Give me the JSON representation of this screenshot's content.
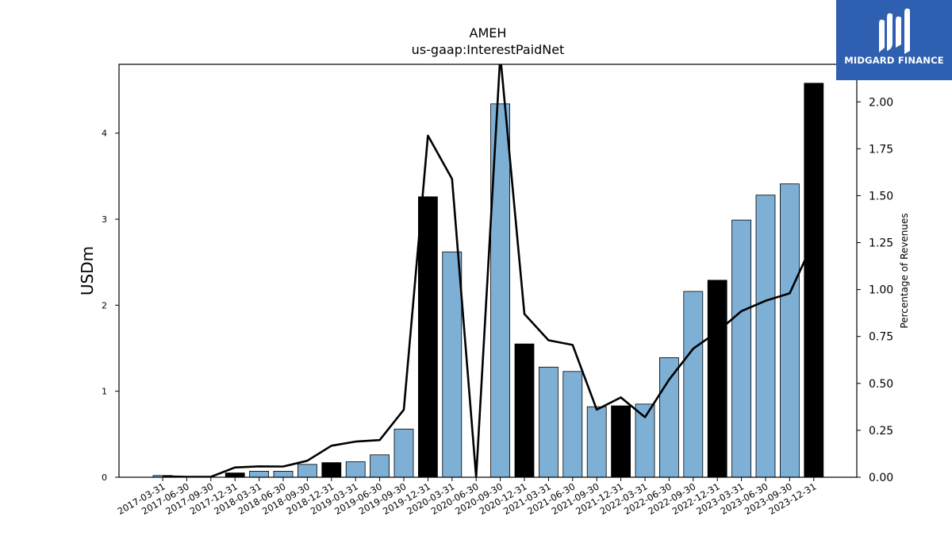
{
  "brand": {
    "name": "MIDGARD FINANCE",
    "logo_icon": "midgard-logo-icon",
    "background": "#2f5fb0"
  },
  "chart_data": {
    "type": "bar",
    "title": "AMEH",
    "subtitle": "us-gaap:InterestPaidNet",
    "ylabel": "USDm",
    "y2label": "Percentage of Revenues",
    "ylim": [
      0,
      4.8
    ],
    "y2lim": [
      0,
      2.2
    ],
    "yticks": [
      "0",
      "1",
      "2",
      "3",
      "4"
    ],
    "y2ticks": [
      "0.00",
      "0.25",
      "0.50",
      "0.75",
      "1.00",
      "1.25",
      "1.50",
      "1.75",
      "2.00"
    ],
    "grid": false,
    "categories": [
      "2017-03-31",
      "2017-06-30",
      "2017-09-30",
      "2017-12-31",
      "2018-03-31",
      "2018-06-30",
      "2018-09-30",
      "2018-12-31",
      "2019-03-31",
      "2019-06-30",
      "2019-09-30",
      "2019-12-31",
      "2020-03-31",
      "2020-06-30",
      "2020-09-30",
      "2020-12-31",
      "2021-03-31",
      "2021-06-30",
      "2021-09-30",
      "2021-12-31",
      "2022-03-31",
      "2022-06-30",
      "2022-09-30",
      "2022-12-31",
      "2023-03-31",
      "2023-06-30",
      "2023-09-30",
      "2023-12-31"
    ],
    "series": [
      {
        "kind": "bar",
        "axis": "left",
        "values": [
          0.02,
          0.0,
          0.0,
          0.05,
          0.07,
          0.07,
          0.15,
          0.17,
          0.18,
          0.26,
          0.56,
          3.26,
          2.62,
          0.0,
          4.34,
          1.55,
          1.28,
          1.23,
          0.82,
          0.83,
          0.85,
          1.39,
          2.16,
          2.29,
          2.99,
          3.28,
          3.41,
          4.58
        ],
        "annual": [
          false,
          false,
          false,
          true,
          false,
          false,
          false,
          true,
          false,
          false,
          false,
          true,
          false,
          false,
          false,
          true,
          false,
          false,
          false,
          true,
          false,
          false,
          false,
          true,
          false,
          false,
          false,
          true
        ],
        "color": "#7eafd4",
        "annual_color": "#000000"
      },
      {
        "kind": "line",
        "axis": "right",
        "values": [
          0.005,
          0.002,
          0.002,
          0.052,
          0.058,
          0.057,
          0.088,
          0.168,
          0.19,
          0.198,
          0.36,
          1.82,
          1.59,
          0.0,
          2.25,
          0.87,
          0.73,
          0.705,
          0.36,
          0.425,
          0.32,
          0.52,
          0.685,
          0.775,
          0.885,
          0.94,
          0.98,
          1.26
        ],
        "color": "#000000"
      }
    ]
  }
}
